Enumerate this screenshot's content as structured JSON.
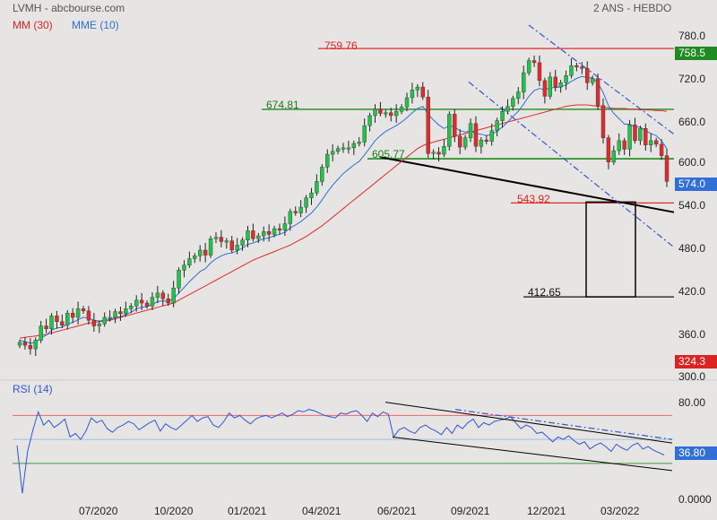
{
  "header": {
    "symbol_source": "LVMH - abcbourse.com",
    "period": "2 ANS - HEBDO",
    "ma_label": "MM (30)",
    "ema_label": "MME (10)"
  },
  "rsi_label": "RSI (14)",
  "colors": {
    "background": "#e7e5e4",
    "bull": "#22c34a",
    "bear": "#e02b2b",
    "ma": "#e02b2b",
    "ema": "#2f6fd6",
    "level_red": "#e02b2b",
    "level_green": "#1f8a1f",
    "trend": "#000000",
    "channel": "#2f55d4"
  },
  "price_axis": {
    "min": 300,
    "max": 780,
    "ticks": [
      "780.0",
      "720.0",
      "660.0",
      "600.0",
      "540.0",
      "480.0",
      "420.0",
      "360.0",
      "300.0"
    ],
    "last_price_tag": "574.0",
    "high_tag": "758.5",
    "low_tag": "324.3"
  },
  "rsi_axis": {
    "ticks": [
      "80.00",
      "0.0000"
    ],
    "overbought": 70,
    "oversold": 30,
    "mid": 50,
    "value_tag": "36.80"
  },
  "x_labels": [
    "07/2020",
    "10/2020",
    "01/2021",
    "04/2021",
    "06/2021",
    "09/2021",
    "12/2021",
    "03/2022"
  ],
  "levels": {
    "l1": "759.76",
    "l2": "674.81",
    "l3": "605.77",
    "l4": "543.92",
    "l5": "412.65"
  },
  "chart_data": {
    "type": "candlestick",
    "title": "LVMH - abcbourse.com",
    "timeframe": "2 ANS - HEBDO",
    "close": [
      349,
      345,
      340,
      352,
      372,
      368,
      386,
      378,
      373,
      390,
      384,
      396,
      393,
      380,
      372,
      375,
      384,
      384,
      392,
      389,
      396,
      400,
      408,
      404,
      400,
      412,
      418,
      410,
      404,
      425,
      450,
      457,
      466,
      470,
      478,
      471,
      494,
      496,
      490,
      491,
      478,
      485,
      492,
      505,
      494,
      498,
      504,
      500,
      508,
      506,
      515,
      532,
      530,
      538,
      551,
      558,
      574,
      594,
      612,
      616,
      620,
      621,
      621,
      627,
      629,
      652,
      666,
      675,
      669,
      670,
      666,
      672,
      678,
      691,
      702,
      706,
      692,
      613,
      615,
      612,
      623,
      668,
      637,
      622,
      635,
      655,
      623,
      632,
      630,
      645,
      659,
      672,
      679,
      690,
      699,
      726,
      743,
      740,
      715,
      693,
      720,
      706,
      712,
      722,
      736,
      734,
      732,
      712,
      718,
      680,
      635,
      601,
      617,
      631,
      619,
      653,
      631,
      648,
      625,
      631,
      626,
      610,
      574
    ],
    "ma30": [
      355,
      356,
      357,
      358,
      359,
      360,
      362,
      364,
      366,
      368,
      370,
      372,
      374,
      376,
      377,
      378,
      379,
      380,
      382,
      384,
      386,
      388,
      390,
      392,
      394,
      396,
      398,
      400,
      402,
      404,
      408,
      412,
      416,
      420,
      424,
      428,
      432,
      436,
      440,
      444,
      448,
      452,
      456,
      460,
      464,
      467,
      470,
      473,
      476,
      479,
      482,
      485,
      489,
      493,
      497,
      502,
      507,
      512,
      518,
      524,
      530,
      536,
      542,
      548,
      554,
      560,
      566,
      572,
      578,
      584,
      590,
      596,
      602,
      608,
      614,
      620,
      624,
      627,
      629,
      631,
      633,
      635,
      637,
      639,
      641,
      643,
      645,
      647,
      649,
      651,
      653,
      655,
      657,
      659,
      661,
      663,
      665,
      667,
      669,
      671,
      673,
      675,
      677,
      679,
      680,
      681,
      681,
      681,
      680,
      679,
      678,
      677,
      676,
      676,
      676,
      675,
      675,
      674,
      674,
      674,
      673,
      673,
      672
    ],
    "ema10": [
      352,
      350,
      348,
      349,
      355,
      359,
      366,
      369,
      370,
      375,
      377,
      381,
      384,
      383,
      380,
      379,
      380,
      381,
      384,
      385,
      388,
      391,
      396,
      398,
      399,
      402,
      406,
      407,
      406,
      410,
      418,
      426,
      434,
      441,
      448,
      452,
      460,
      466,
      470,
      473,
      474,
      477,
      481,
      486,
      488,
      491,
      494,
      495,
      498,
      500,
      503,
      509,
      513,
      518,
      524,
      530,
      538,
      548,
      559,
      569,
      577,
      585,
      591,
      597,
      602,
      611,
      621,
      631,
      638,
      644,
      648,
      652,
      657,
      663,
      670,
      676,
      679,
      668,
      660,
      653,
      648,
      652,
      650,
      645,
      643,
      645,
      641,
      640,
      638,
      640,
      644,
      650,
      657,
      665,
      672,
      682,
      693,
      701,
      704,
      702,
      705,
      705,
      706,
      709,
      714,
      718,
      721,
      719,
      719,
      712,
      698,
      680,
      669,
      662,
      654,
      654,
      650,
      650,
      645,
      641,
      638,
      631,
      620
    ],
    "rsi14": [
      45,
      5,
      40,
      58,
      73,
      62,
      66,
      60,
      63,
      67,
      52,
      55,
      50,
      57,
      68,
      64,
      66,
      59,
      56,
      60,
      62,
      65,
      63,
      58,
      61,
      64,
      66,
      57,
      63,
      60,
      58,
      62,
      66,
      70,
      65,
      68,
      69,
      62,
      60,
      65,
      72,
      68,
      70,
      66,
      63,
      67,
      69,
      70,
      68,
      70,
      72,
      69,
      71,
      74,
      73,
      75,
      74,
      72,
      70,
      69,
      68,
      72,
      71,
      73,
      74,
      70,
      65,
      72,
      69,
      73,
      71,
      52,
      58,
      60,
      57,
      55,
      60,
      62,
      59,
      57,
      54,
      60,
      55,
      62,
      59,
      64,
      67,
      60,
      64,
      62,
      65,
      66,
      67,
      69,
      64,
      59,
      62,
      60,
      55,
      56,
      52,
      48,
      52,
      50,
      53,
      49,
      46,
      48,
      42,
      45,
      47,
      44,
      40,
      46,
      43,
      41,
      45,
      47,
      42,
      44,
      41,
      39,
      37
    ],
    "price_levels": [
      759.76,
      674.81,
      605.77,
      543.92,
      412.65
    ],
    "ylim": [
      300,
      780
    ],
    "rsi_ylim": [
      0,
      100
    ],
    "last_price": 574.0,
    "rsi_last": 36.8
  }
}
